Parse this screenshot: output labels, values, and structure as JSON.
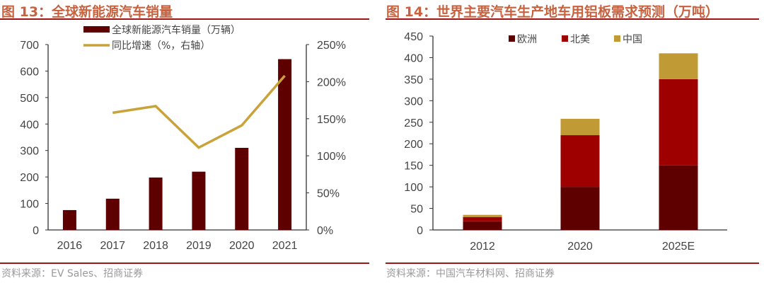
{
  "chart_data": [
    {
      "type": "bar+line",
      "title": "图 13：全球新能源汽车销量",
      "source": "资料来源：EV Sales、招商证券",
      "categories": [
        "2016",
        "2017",
        "2018",
        "2019",
        "2020",
        "2021"
      ],
      "series": [
        {
          "name": "全球新能源汽车销量（万辆）",
          "type": "bar",
          "axis": "left",
          "color": "#5e0000",
          "values": [
            75,
            118,
            198,
            220,
            310,
            645
          ]
        },
        {
          "name": "同比增速（%，右轴）",
          "type": "line",
          "axis": "right",
          "color": "#c9a33a",
          "values": [
            null,
            158,
            167,
            111,
            141,
            208
          ]
        }
      ],
      "ylim_left": [
        0,
        700
      ],
      "yticks_left": [
        "0",
        "100",
        "200",
        "300",
        "400",
        "500",
        "600",
        "700"
      ],
      "ylim_right": [
        0,
        250
      ],
      "yticks_right": [
        "0%",
        "50%",
        "100%",
        "150%",
        "200%",
        "250%"
      ],
      "legend": "top",
      "grid": false
    },
    {
      "type": "stacked-bar",
      "title": "图 14：世界主要汽车生产地车用铝板需求预测（万吨）",
      "source": "资料来源：中国汽车材料网、招商证券",
      "categories": [
        "2012",
        "2020",
        "2025E"
      ],
      "series": [
        {
          "name": "欧洲",
          "color": "#5e0000",
          "values": [
            20,
            100,
            150
          ]
        },
        {
          "name": "北美",
          "color": "#9e0000",
          "values": [
            10,
            120,
            200
          ]
        },
        {
          "name": "中国",
          "color": "#c09a34",
          "values": [
            5,
            38,
            60
          ]
        }
      ],
      "ylim": [
        0,
        450
      ],
      "yticks": [
        "0",
        "50",
        "100",
        "150",
        "200",
        "250",
        "300",
        "350",
        "400",
        "450"
      ],
      "legend": "top",
      "grid": false
    }
  ]
}
